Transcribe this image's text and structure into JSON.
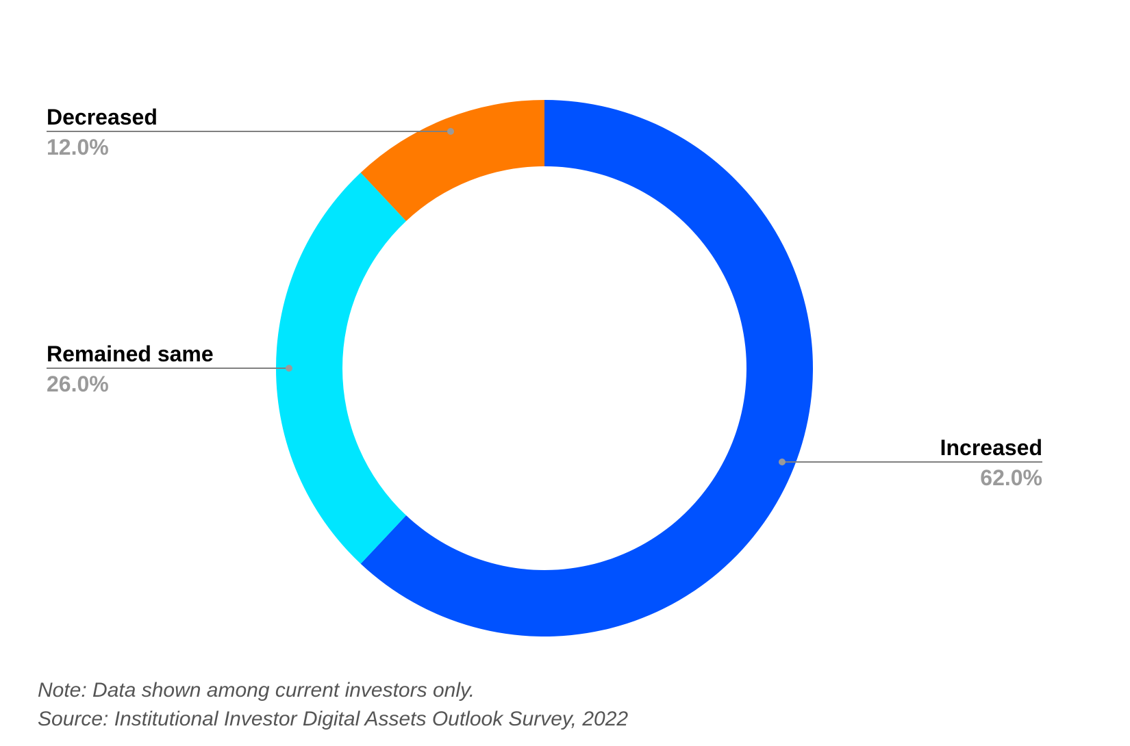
{
  "chart_data": {
    "type": "pie",
    "donut": true,
    "categories": [
      "Increased",
      "Remained same",
      "Decreased"
    ],
    "values": [
      62.0,
      26.0,
      12.0
    ],
    "value_labels": [
      "62.0%",
      "26.0%",
      "12.0%"
    ],
    "colors": [
      "#0052ff",
      "#00e6ff",
      "#ff7a00"
    ],
    "start_angle": "12 o'clock",
    "direction": "clockwise",
    "legend": "none",
    "label_placement": "outside-with-leader-lines"
  },
  "footer": {
    "note": "Note: Data shown among current investors only.",
    "source": "Source: Institutional Investor Digital Assets Outlook Survey, 2022"
  }
}
